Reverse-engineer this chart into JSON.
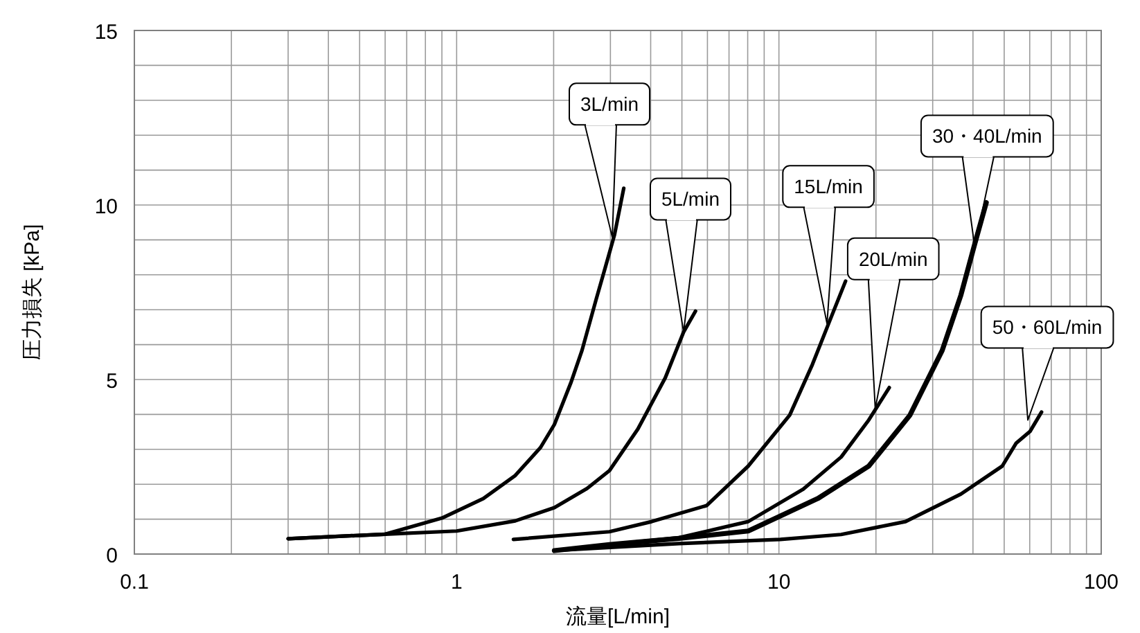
{
  "chart_data": {
    "type": "line",
    "xlabel": "流量[L/min]",
    "ylabel": "圧力損失 [kPa]",
    "log": "x",
    "xlim": [
      0.1,
      100
    ],
    "xticks": [
      0.1,
      1,
      10,
      100
    ],
    "ylim": [
      0,
      15
    ],
    "yticks": [
      0,
      5,
      10,
      15
    ],
    "grid": true,
    "marker": "none",
    "line_style": "solid",
    "series": [
      {
        "color": "#000000",
        "x": [
          0.3,
          0.6,
          0.9,
          1.21,
          1.52,
          1.82,
          2.01,
          2.26,
          2.45,
          2.71,
          2.89,
          3.09,
          3.3
        ],
        "values": [
          0.44,
          0.57,
          1.03,
          1.59,
          2.25,
          3.05,
          3.71,
          4.9,
          5.84,
          7.3,
          8.2,
          9.15,
          10.48
        ]
      },
      {
        "color": "#000000",
        "x": [
          0.3,
          0.6,
          1,
          1.52,
          2.01,
          2.54,
          2.98,
          3.65,
          4.44,
          5.06,
          5.51
        ],
        "values": [
          0.44,
          0.57,
          0.66,
          0.95,
          1.33,
          1.88,
          2.39,
          3.58,
          5.05,
          6.36,
          6.96
        ]
      },
      {
        "color": "#000000",
        "x": [
          1.5,
          2.98,
          4.03,
          5.97,
          8.03,
          10.8,
          12.7,
          14.3,
          16.1
        ],
        "values": [
          0.42,
          0.64,
          0.93,
          1.39,
          2.52,
          3.98,
          5.43,
          6.63,
          7.82
        ]
      },
      {
        "color": "#000000",
        "x": [
          2.01,
          2.98,
          4.9,
          8.03,
          11.9,
          15.6,
          19,
          22
        ],
        "values": [
          0.1,
          0.27,
          0.47,
          0.93,
          1.86,
          2.78,
          3.84,
          4.77
        ]
      },
      {
        "color": "#000000",
        "x": [
          2.01,
          2.98,
          4.9,
          8.03,
          13.2,
          19,
          25.5,
          32.1,
          36.7,
          40.5,
          44
        ],
        "values": [
          0.1,
          0.27,
          0.45,
          0.66,
          1.59,
          2.52,
          3.98,
          5.83,
          7.42,
          8.88,
          10.07
        ]
      },
      {
        "color": "#000000",
        "x": [
          2.01,
          4.9,
          10.1,
          15.6,
          24.7,
          36.7,
          49.3,
          54.5,
          60.1,
          65.3
        ],
        "values": [
          0.1,
          0.3,
          0.42,
          0.56,
          0.93,
          1.72,
          2.52,
          3.18,
          3.51,
          4.07
        ]
      }
    ],
    "annotations": [
      {
        "text": "3L/min",
        "x": 3.04,
        "y": 9.08
      },
      {
        "text": "5L/min",
        "x": 5.06,
        "y": 6.36
      },
      {
        "text": "15L/min",
        "x": 14.1,
        "y": 6.6
      },
      {
        "text": "20L/min",
        "x": 19.9,
        "y": 4.17
      },
      {
        "text": "30・40L/min",
        "x": 40.5,
        "y": 8.8
      },
      {
        "text": "50・60L/min",
        "x": 59.2,
        "y": 3.84
      }
    ]
  }
}
